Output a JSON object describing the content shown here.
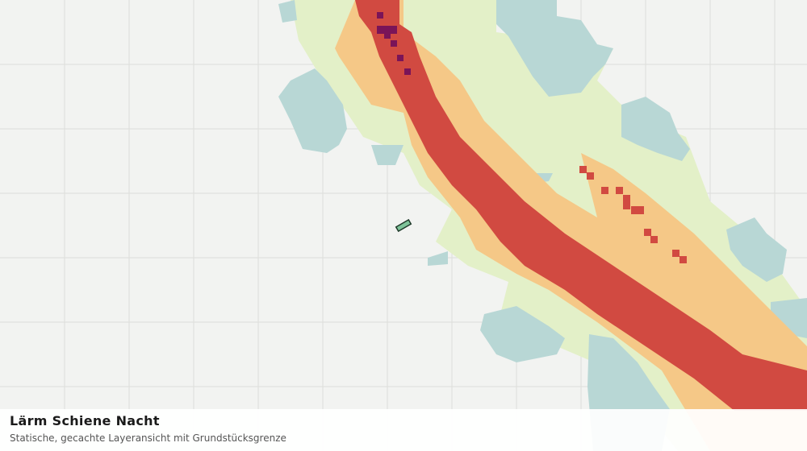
{
  "header": {
    "title": "Lärm Schiene Nacht",
    "subtitle": "Statische, gecachte Layeransicht mit Grundstücksgrenze"
  }
}
